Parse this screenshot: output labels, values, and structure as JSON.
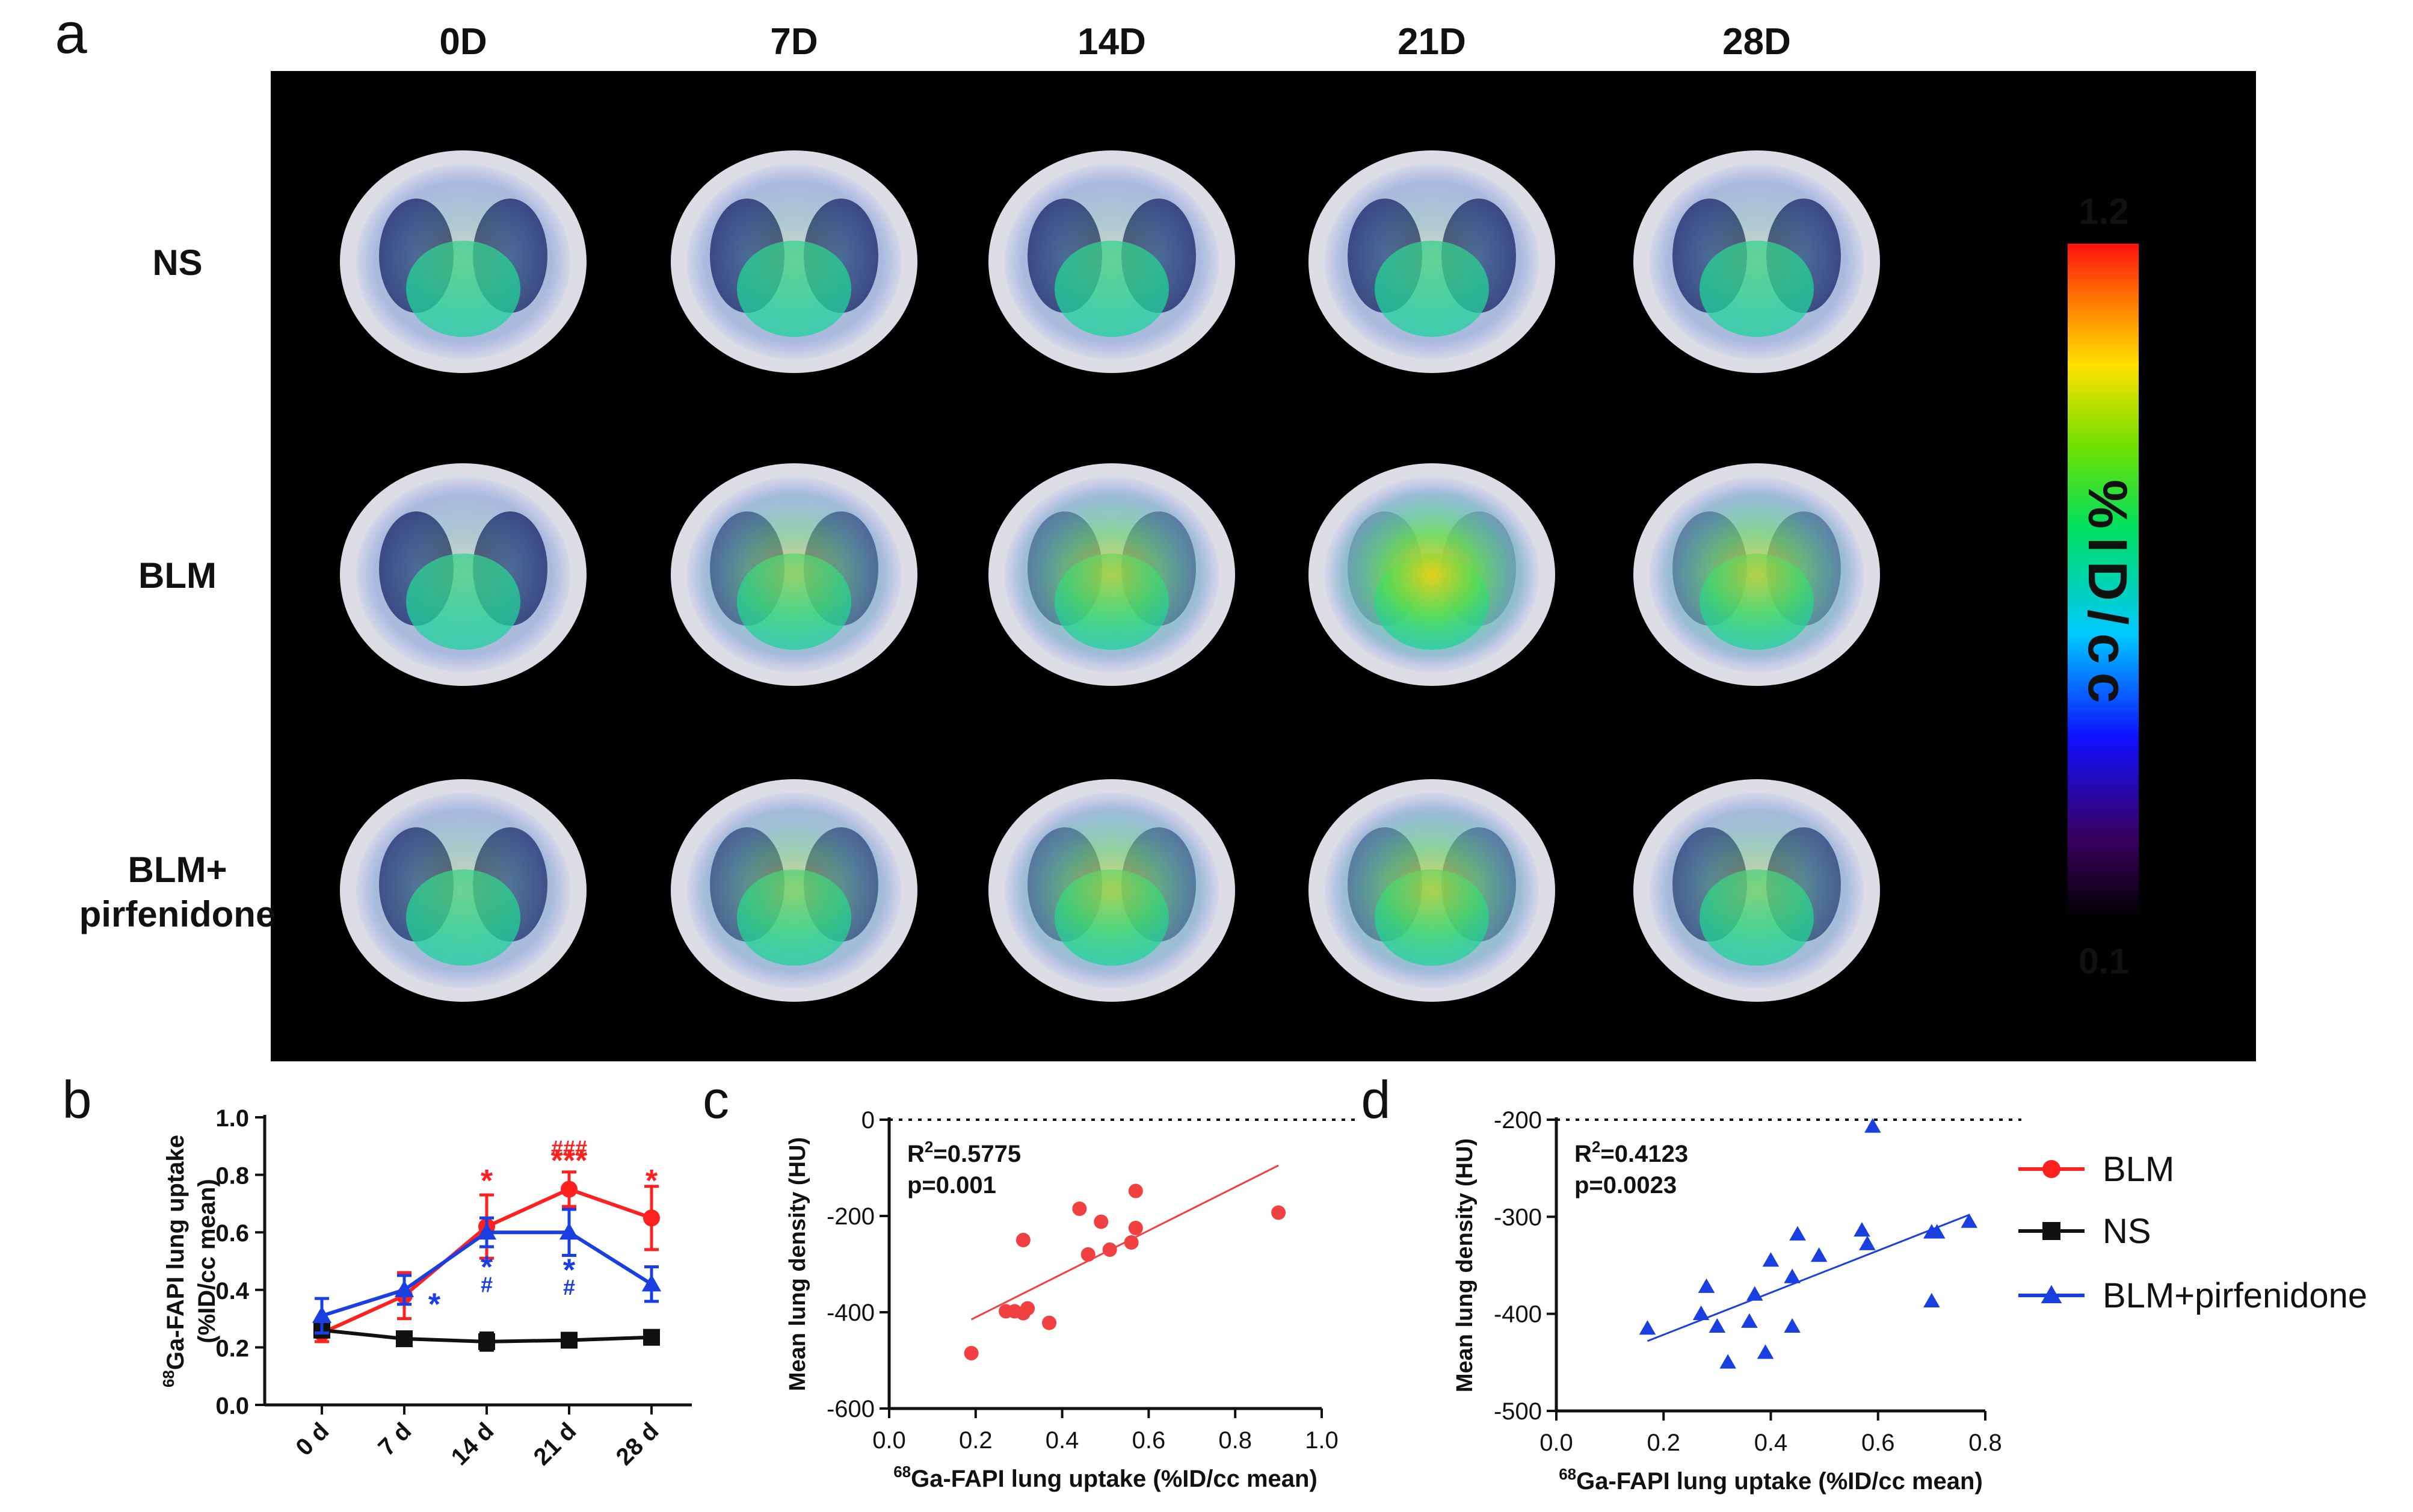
{
  "panel_a": {
    "letter": "a",
    "columns": [
      "0D",
      "7D",
      "14D",
      "21D",
      "28D"
    ],
    "rows": [
      {
        "label_lines": [
          "NS"
        ],
        "intensity": [
          0.15,
          0.15,
          0.15,
          0.15,
          0.15
        ]
      },
      {
        "label_lines": [
          "BLM"
        ],
        "intensity": [
          0.15,
          0.4,
          0.55,
          0.85,
          0.6
        ]
      },
      {
        "label_lines": [
          "BLM+",
          "pirfenidone"
        ],
        "intensity": [
          0.2,
          0.35,
          0.5,
          0.55,
          0.3
        ]
      }
    ],
    "colorbar": {
      "max_label": "1.2",
      "min_label": "0.1",
      "unit": "%ID/cc"
    }
  },
  "legend": {
    "items": [
      {
        "label": "BLM",
        "color": "#ff2020",
        "marker": "circle"
      },
      {
        "label": "NS",
        "color": "#111111",
        "marker": "square"
      },
      {
        "label": "BLM+pirfenidone",
        "color": "#1a3fe0",
        "marker": "triangle"
      }
    ]
  },
  "chart_data": [
    {
      "panel": "b",
      "type": "line",
      "ylabel_lines": [
        "68Ga-FAPI lung uptake",
        "(%ID/cc mean)"
      ],
      "ylabel_super": "68",
      "categories": [
        "0 d",
        "7 d",
        "14 d",
        "21 d",
        "28 d"
      ],
      "ylim": [
        0.0,
        1.0
      ],
      "yticks": [
        "0.0",
        "0.2",
        "0.4",
        "0.6",
        "0.8",
        "1.0"
      ],
      "series": [
        {
          "name": "BLM",
          "color": "#ff2020",
          "marker": "circle",
          "values": [
            0.25,
            0.38,
            0.62,
            0.75,
            0.65
          ],
          "errors": [
            0.03,
            0.08,
            0.11,
            0.06,
            0.11
          ]
        },
        {
          "name": "NS",
          "color": "#111111",
          "marker": "square",
          "values": [
            0.26,
            0.23,
            0.22,
            0.225,
            0.235
          ],
          "errors": [
            0.02,
            0.015,
            0.03,
            0.01,
            0.015
          ]
        },
        {
          "name": "BLM+pirfenidone",
          "color": "#1a3fe0",
          "marker": "triangle",
          "values": [
            0.31,
            0.4,
            0.6,
            0.6,
            0.42
          ],
          "errors": [
            0.06,
            0.05,
            0.05,
            0.08,
            0.06
          ]
        }
      ],
      "annotations": [
        {
          "category": "7 d",
          "text": "*",
          "color": "#1a3fe0",
          "value": 0.35
        },
        {
          "category": "14 d",
          "text": "*",
          "color": "#ff2020",
          "value": 0.78
        },
        {
          "category": "14 d",
          "text": "*",
          "color": "#1a3fe0",
          "value": 0.48
        },
        {
          "category": "14 d",
          "text": "#",
          "color": "#1a3fe0",
          "value": 0.43
        },
        {
          "category": "21 d",
          "text": "###",
          "color": "#ff2020",
          "value": 0.905
        },
        {
          "category": "21 d",
          "text": "***",
          "color": "#ff2020",
          "value": 0.85
        },
        {
          "category": "21 d",
          "text": "*",
          "color": "#1a3fe0",
          "value": 0.47
        },
        {
          "category": "21 d",
          "text": "#",
          "color": "#1a3fe0",
          "value": 0.42
        },
        {
          "category": "28 d",
          "text": "*",
          "color": "#ff2020",
          "value": 0.78
        }
      ]
    },
    {
      "panel": "c",
      "type": "scatter",
      "xlabel": "68Ga-FAPI lung uptake (%ID/cc mean)",
      "xlabel_super": "68",
      "ylabel": "Mean lung density (HU)",
      "xlim": [
        0.0,
        1.0
      ],
      "ylim": [
        -600,
        0
      ],
      "xticks": [
        "0.0",
        "0.2",
        "0.4",
        "0.6",
        "0.8",
        "1.0"
      ],
      "yticks": [
        "-600",
        "-400",
        "-200",
        "0"
      ],
      "reference_line": 0,
      "stats": [
        "R2=0.5775",
        "p=0.001"
      ],
      "color": "#f04040",
      "marker": "circle",
      "fit": {
        "x": [
          0.19,
          0.9
        ],
        "y": [
          -415,
          -95
        ]
      },
      "points": [
        {
          "x": 0.19,
          "y": -485
        },
        {
          "x": 0.27,
          "y": -398
        },
        {
          "x": 0.29,
          "y": -398
        },
        {
          "x": 0.31,
          "y": -402
        },
        {
          "x": 0.32,
          "y": -392
        },
        {
          "x": 0.31,
          "y": -250
        },
        {
          "x": 0.37,
          "y": -422
        },
        {
          "x": 0.44,
          "y": -185
        },
        {
          "x": 0.46,
          "y": -280
        },
        {
          "x": 0.49,
          "y": -212
        },
        {
          "x": 0.51,
          "y": -270
        },
        {
          "x": 0.56,
          "y": -255
        },
        {
          "x": 0.57,
          "y": -148
        },
        {
          "x": 0.57,
          "y": -225
        },
        {
          "x": 0.9,
          "y": -193
        }
      ]
    },
    {
      "panel": "d",
      "type": "scatter",
      "xlabel": "68Ga-FAPI lung uptake (%ID/cc mean)",
      "xlabel_super": "68",
      "ylabel": "Mean lung density (HU)",
      "xlim": [
        0.0,
        0.8
      ],
      "ylim": [
        -500,
        -200
      ],
      "xticks": [
        "0.0",
        "0.2",
        "0.4",
        "0.6",
        "0.8"
      ],
      "yticks": [
        "-500",
        "-400",
        "-300",
        "-200"
      ],
      "reference_line": -200,
      "stats": [
        "R2=0.4123",
        "p=0.0023"
      ],
      "color": "#1a3fe0",
      "marker": "triangle",
      "fit": {
        "x": [
          0.17,
          0.77
        ],
        "y": [
          -428,
          -298
        ]
      },
      "points": [
        {
          "x": 0.17,
          "y": -415
        },
        {
          "x": 0.27,
          "y": -400
        },
        {
          "x": 0.28,
          "y": -372
        },
        {
          "x": 0.3,
          "y": -413
        },
        {
          "x": 0.32,
          "y": -450
        },
        {
          "x": 0.36,
          "y": -408
        },
        {
          "x": 0.37,
          "y": -380
        },
        {
          "x": 0.39,
          "y": -440
        },
        {
          "x": 0.4,
          "y": -345
        },
        {
          "x": 0.44,
          "y": -362
        },
        {
          "x": 0.44,
          "y": -413
        },
        {
          "x": 0.45,
          "y": -318
        },
        {
          "x": 0.49,
          "y": -340
        },
        {
          "x": 0.57,
          "y": -314
        },
        {
          "x": 0.58,
          "y": -328
        },
        {
          "x": 0.59,
          "y": -207
        },
        {
          "x": 0.7,
          "y": -316
        },
        {
          "x": 0.71,
          "y": -316
        },
        {
          "x": 0.7,
          "y": -387
        },
        {
          "x": 0.77,
          "y": -305
        }
      ]
    }
  ]
}
